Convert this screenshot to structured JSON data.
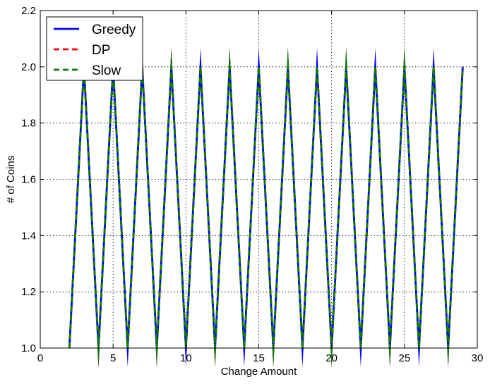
{
  "chart_data": {
    "type": "line",
    "xlabel": "Change Amount",
    "ylabel": "# of Coins",
    "xlim": [
      0,
      30
    ],
    "ylim": [
      1.0,
      2.2
    ],
    "xticks": [
      0,
      5,
      10,
      15,
      20,
      25,
      30
    ],
    "xtick_labels": [
      "0",
      "5",
      "10",
      "15",
      "20",
      "25",
      "30"
    ],
    "yticks": [
      1.0,
      1.2,
      1.4,
      1.6,
      1.8,
      2.0,
      2.2
    ],
    "ytick_labels": [
      "1.0",
      "1.2",
      "1.4",
      "1.6",
      "1.8",
      "2.0",
      "2.2"
    ],
    "grid": true,
    "legend_position": "top-left",
    "x": [
      2,
      3,
      4,
      5,
      6,
      7,
      8,
      9,
      10,
      11,
      12,
      13,
      14,
      15,
      16,
      17,
      18,
      19,
      20,
      21,
      22,
      23,
      24,
      25,
      26,
      27,
      28,
      29
    ],
    "series": [
      {
        "name": "Greedy",
        "color": "#0000ff",
        "style": "solid",
        "values": [
          1,
          2,
          1,
          2,
          1,
          2,
          1,
          2,
          1,
          2,
          1,
          2,
          1,
          2,
          1,
          2,
          1,
          2,
          1,
          2,
          1,
          2,
          1,
          2,
          1,
          2,
          1,
          2
        ]
      },
      {
        "name": "DP",
        "color": "#ff0000",
        "style": "dashed",
        "values": [
          1,
          2,
          1,
          2,
          1,
          2,
          1,
          2,
          1,
          2,
          1,
          2,
          1,
          2,
          1,
          2,
          1,
          2,
          1,
          2,
          1,
          2,
          1,
          2,
          1,
          2,
          1,
          2
        ]
      },
      {
        "name": "Slow",
        "color": "#008000",
        "style": "dashed",
        "values": [
          1,
          2,
          1,
          2,
          1,
          2,
          1,
          2,
          1,
          2,
          1,
          2,
          1,
          2,
          1,
          2,
          1,
          2,
          1,
          2,
          1,
          2,
          1,
          2,
          1,
          2,
          1,
          2
        ]
      }
    ]
  }
}
